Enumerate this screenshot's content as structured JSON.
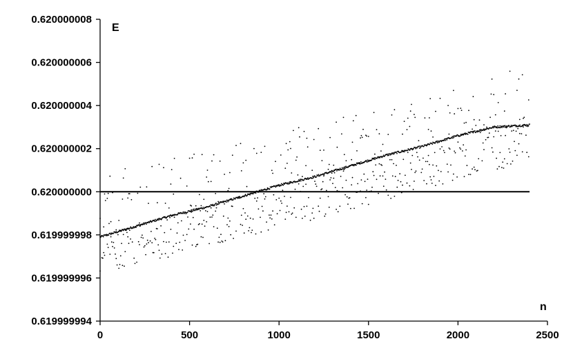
{
  "chart_data": {
    "type": "scatter",
    "xlabel": "n",
    "ylabel": "E",
    "xlim": [
      0,
      2500
    ],
    "ylim": [
      0.619999994,
      0.620000008
    ],
    "x_ticks": [
      "0",
      "500",
      "1000",
      "1500",
      "2000",
      "2500"
    ],
    "y_ticks": [
      "0.619999994",
      "0.619999996",
      "0.619999998",
      "0.620000000",
      "0.620000002",
      "0.620000004",
      "0.620000006",
      "0.620000008"
    ],
    "reference_line": {
      "y": 0.62,
      "x_range": [
        0,
        2400
      ]
    },
    "grid": false,
    "legend": "none",
    "series": [
      {
        "style": "dense band",
        "points": [
          [
            0,
            0.6199999979
          ],
          [
            200,
            0.6199999984
          ],
          [
            400,
            0.6199999989
          ],
          [
            600,
            0.6199999993
          ],
          [
            800,
            0.6199999998
          ],
          [
            1000,
            0.6200000003
          ],
          [
            1200,
            0.6200000007
          ],
          [
            1400,
            0.6200000012
          ],
          [
            1600,
            0.6200000017
          ],
          [
            1800,
            0.6200000021
          ],
          [
            2000,
            0.6200000026
          ],
          [
            2200,
            0.620000003
          ],
          [
            2400,
            0.6200000031
          ]
        ]
      },
      {
        "style": "upper scatter",
        "points": [
          [
            0,
            0.6200000008
          ],
          [
            400,
            0.6200000016
          ],
          [
            800,
            0.6200000024
          ],
          [
            1200,
            0.6200000032
          ],
          [
            1600,
            0.620000004
          ],
          [
            2000,
            0.6200000049
          ],
          [
            2350,
            0.6200000058
          ]
        ]
      },
      {
        "style": "lower scatter",
        "points": [
          [
            0,
            0.6199999962
          ],
          [
            400,
            0.619999997
          ],
          [
            800,
            0.6199999979
          ],
          [
            1200,
            0.6199999987
          ],
          [
            1600,
            0.6199999996
          ],
          [
            2000,
            0.6200000005
          ],
          [
            2400,
            0.6200000014
          ]
        ]
      }
    ]
  }
}
